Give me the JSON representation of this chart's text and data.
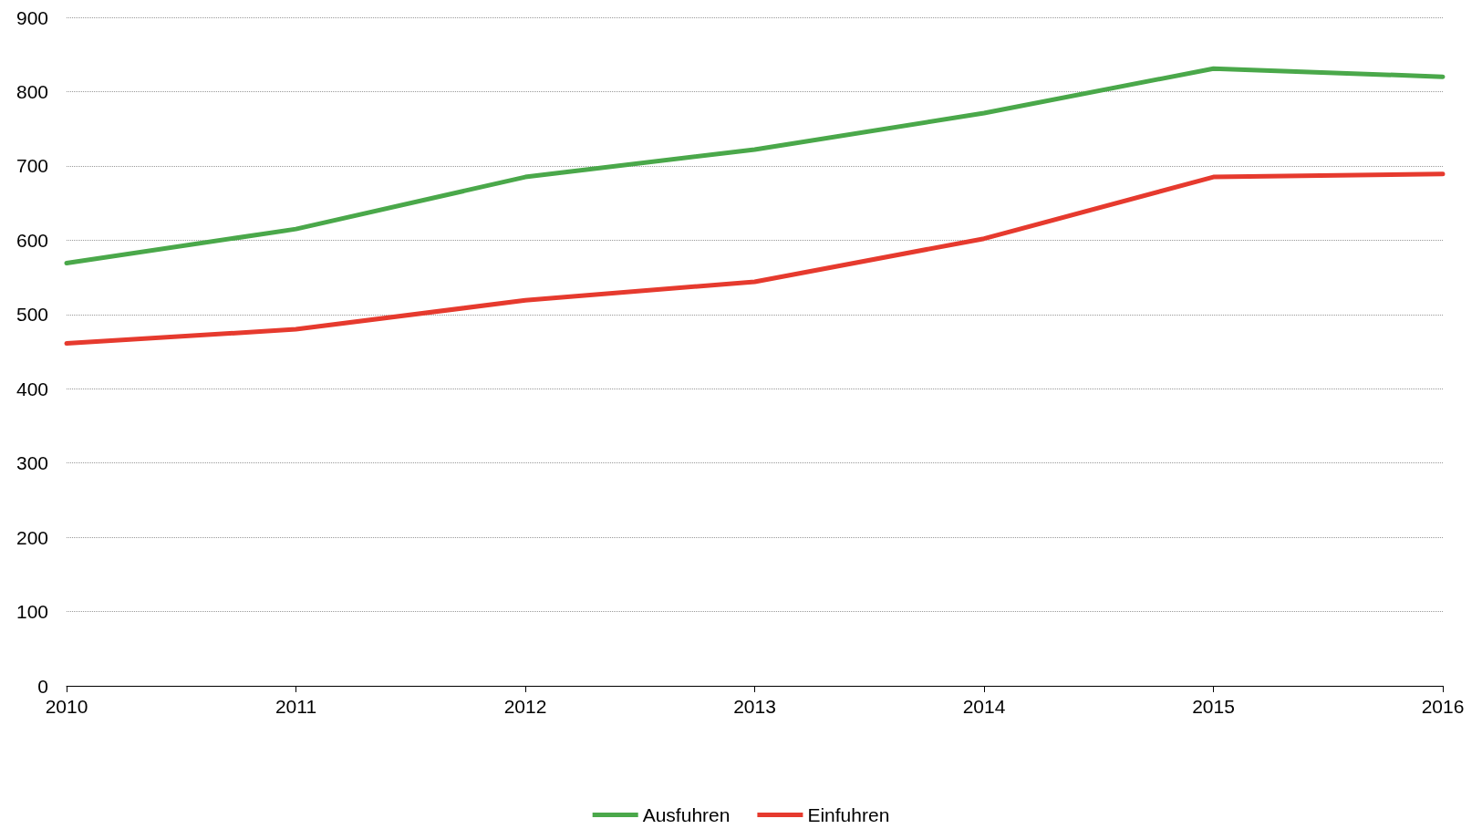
{
  "chart_data": {
    "type": "line",
    "categories": [
      "2010",
      "2011",
      "2012",
      "2013",
      "2014",
      "2015",
      "2016"
    ],
    "series": [
      {
        "name": "Ausfuhren",
        "color": "#4aa84a",
        "values": [
          569,
          615,
          685,
          722,
          771,
          831,
          820
        ]
      },
      {
        "name": "Einfuhren",
        "color": "#e63a2e",
        "values": [
          461,
          480,
          519,
          544,
          602,
          685,
          689
        ]
      }
    ],
    "ylim": [
      0,
      900
    ],
    "yticks": [
      0,
      100,
      200,
      300,
      400,
      500,
      600,
      700,
      800,
      900
    ],
    "grid": "y",
    "legend": "bottom",
    "marker": "none",
    "line_style": "solid"
  }
}
